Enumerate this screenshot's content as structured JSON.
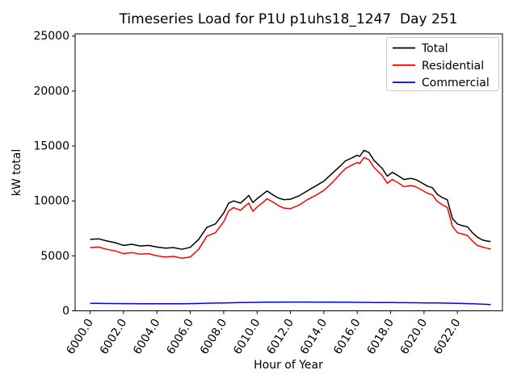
{
  "chart_data": {
    "type": "line",
    "title": "Timeseries Load for P1U p1uhs18_1247  Day 251",
    "xlabel": "Hour of Year",
    "ylabel": "kW total",
    "xlim": [
      5999.1,
      6024.7
    ],
    "ylim": [
      0,
      25200
    ],
    "grid": false,
    "xticks": [
      6000,
      6002,
      6004,
      6006,
      6008,
      6010,
      6012,
      6014,
      6016,
      6018,
      6020,
      6022
    ],
    "xtick_labels": [
      "6000.0",
      "6002.0",
      "6004.0",
      "6006.0",
      "6008.0",
      "6010.0",
      "6012.0",
      "6014.0",
      "6016.0",
      "6018.0",
      "6020.0",
      "6022.0"
    ],
    "yticks": [
      0,
      5000,
      10000,
      15000,
      20000,
      25000
    ],
    "ytick_labels": [
      "0",
      "5000",
      "10000",
      "15000",
      "20000",
      "25000"
    ],
    "legend": {
      "position": "upper right",
      "entries": [
        "Total",
        "Residential",
        "Commercial"
      ],
      "border_color": "#cccccc"
    },
    "x": [
      6000.0,
      6000.5,
      6001.0,
      6001.5,
      6002.0,
      6002.5,
      6003.0,
      6003.5,
      6004.0,
      6004.5,
      6005.0,
      6005.5,
      6006.0,
      6006.5,
      6007.0,
      6007.5,
      6008.0,
      6008.3,
      6008.6,
      6009.0,
      6009.3,
      6009.5,
      6009.75,
      6010.0,
      6010.3,
      6010.6,
      6011.0,
      6011.3,
      6011.6,
      6012.0,
      6012.5,
      6013.0,
      6013.5,
      6014.0,
      6014.5,
      6015.0,
      6015.3,
      6015.6,
      6016.0,
      6016.15,
      6016.4,
      6016.7,
      6017.0,
      6017.5,
      6017.8,
      6018.1,
      6018.4,
      6018.8,
      6019.2,
      6019.5,
      6019.8,
      6020.2,
      6020.5,
      6020.8,
      6021.1,
      6021.4,
      6021.7,
      6022.0,
      6022.3,
      6022.6,
      6022.9,
      6023.2,
      6023.5,
      6023.75,
      6024.0
    ],
    "series": [
      {
        "name": "Total",
        "color": "#000000",
        "values": [
          6500,
          6550,
          6350,
          6200,
          5950,
          6050,
          5900,
          5950,
          5800,
          5700,
          5750,
          5600,
          5780,
          6500,
          7600,
          7900,
          8900,
          9800,
          10000,
          9800,
          10200,
          10500,
          9850,
          10200,
          10550,
          10900,
          10500,
          10250,
          10120,
          10150,
          10450,
          10900,
          11350,
          11800,
          12500,
          13200,
          13650,
          13850,
          14150,
          14050,
          14600,
          14400,
          13700,
          12950,
          12250,
          12600,
          12350,
          11950,
          12050,
          11950,
          11700,
          11350,
          11200,
          10600,
          10300,
          10100,
          8400,
          7900,
          7750,
          7650,
          7100,
          6700,
          6450,
          6350,
          6300
        ]
      },
      {
        "name": "Residential",
        "color": "#ff0000",
        "values": [
          5750,
          5800,
          5600,
          5450,
          5200,
          5300,
          5150,
          5200,
          5000,
          4900,
          4950,
          4780,
          4900,
          5600,
          6800,
          7100,
          8100,
          9100,
          9400,
          9150,
          9550,
          9800,
          9050,
          9450,
          9800,
          10200,
          9850,
          9550,
          9350,
          9300,
          9600,
          10100,
          10500,
          10950,
          11650,
          12500,
          12950,
          13200,
          13500,
          13400,
          13950,
          13750,
          13050,
          12300,
          11600,
          11950,
          11700,
          11300,
          11400,
          11300,
          11050,
          10700,
          10550,
          9950,
          9650,
          9400,
          7700,
          7100,
          7000,
          6850,
          6350,
          5950,
          5800,
          5700,
          5620
        ]
      },
      {
        "name": "Commercial",
        "color": "#0000ff",
        "values": [
          680,
          675,
          670,
          660,
          655,
          650,
          645,
          640,
          635,
          635,
          640,
          645,
          655,
          670,
          690,
          705,
          720,
          728,
          735,
          748,
          755,
          760,
          765,
          772,
          778,
          784,
          790,
          794,
          797,
          800,
          800,
          798,
          795,
          790,
          785,
          780,
          778,
          775,
          770,
          768,
          765,
          762,
          758,
          752,
          748,
          745,
          742,
          738,
          735,
          732,
          728,
          722,
          718,
          712,
          705,
          698,
          690,
          680,
          668,
          655,
          640,
          622,
          605,
          585,
          560
        ]
      }
    ]
  }
}
